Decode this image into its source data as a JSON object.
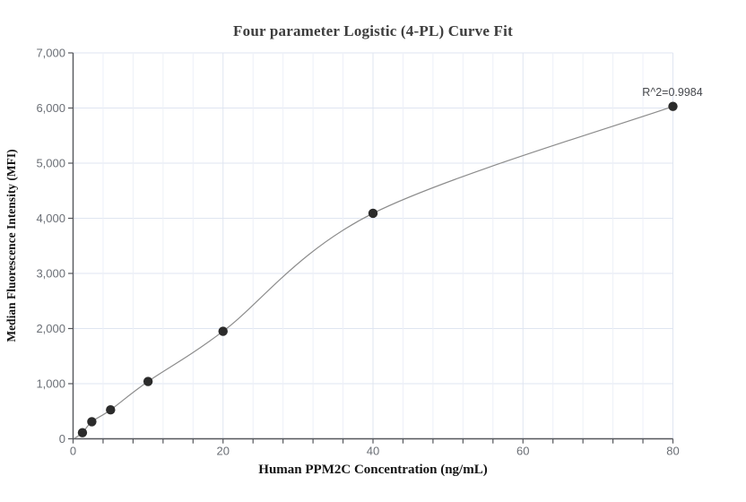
{
  "chart_data": {
    "type": "scatter",
    "title": "Four parameter Logistic (4-PL) Curve Fit",
    "xlabel": "Human PPM2C Concentration (ng/mL)",
    "ylabel": "Median Fluorescence Intensity (MFI)",
    "annotation": "R^2=0.9984",
    "r_squared": 0.9984,
    "x": [
      1.25,
      2.5,
      5,
      10,
      20,
      40,
      80
    ],
    "y": [
      110,
      310,
      525,
      1040,
      1950,
      4090,
      6030
    ],
    "fit_type": "4-PL logistic",
    "xlim": [
      0,
      80
    ],
    "ylim": [
      0,
      7000
    ],
    "x_major_ticks": [
      0,
      20,
      40,
      60,
      80
    ],
    "x_minor_step": 4,
    "y_ticks": [
      0,
      1000,
      2000,
      3000,
      4000,
      5000,
      6000,
      7000
    ],
    "grid": true,
    "legend": null,
    "colors": {
      "point": "#2b2b2b",
      "curve": "#8c8c8c",
      "grid_minor": "#edf0f8",
      "grid_major": "#dfe5f1",
      "axis": "#55575c",
      "tick_label": "#6b6f76",
      "title": "#3d3d3d",
      "axis_title": "#141414",
      "annotation": "#46484d"
    }
  }
}
